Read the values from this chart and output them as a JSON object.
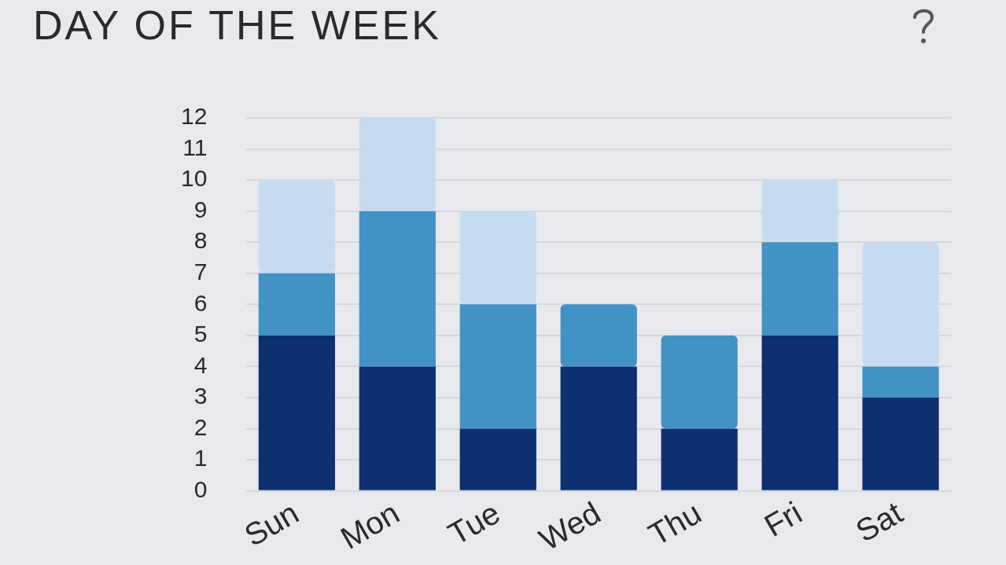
{
  "chart_data": {
    "type": "bar",
    "title": "DAY OF THE WEEK",
    "stacked": true,
    "grid": "y",
    "legend": false,
    "categories": [
      "Sun",
      "Mon",
      "Tue",
      "Wed",
      "Thu",
      "Fri",
      "Sat"
    ],
    "series": [
      {
        "color": "#0d3070",
        "values": [
          5,
          4,
          2,
          4,
          2,
          5,
          3
        ]
      },
      {
        "color": "#4292c6",
        "values": [
          2,
          5,
          4,
          2,
          3,
          3,
          1
        ]
      },
      {
        "color": "#c6dbef",
        "values": [
          3,
          3,
          3,
          0,
          0,
          2,
          4
        ]
      }
    ],
    "ylim": [
      0,
      12
    ],
    "yticks": [
      0,
      1,
      2,
      3,
      4,
      5,
      6,
      7,
      8,
      9,
      10,
      11,
      12
    ]
  }
}
